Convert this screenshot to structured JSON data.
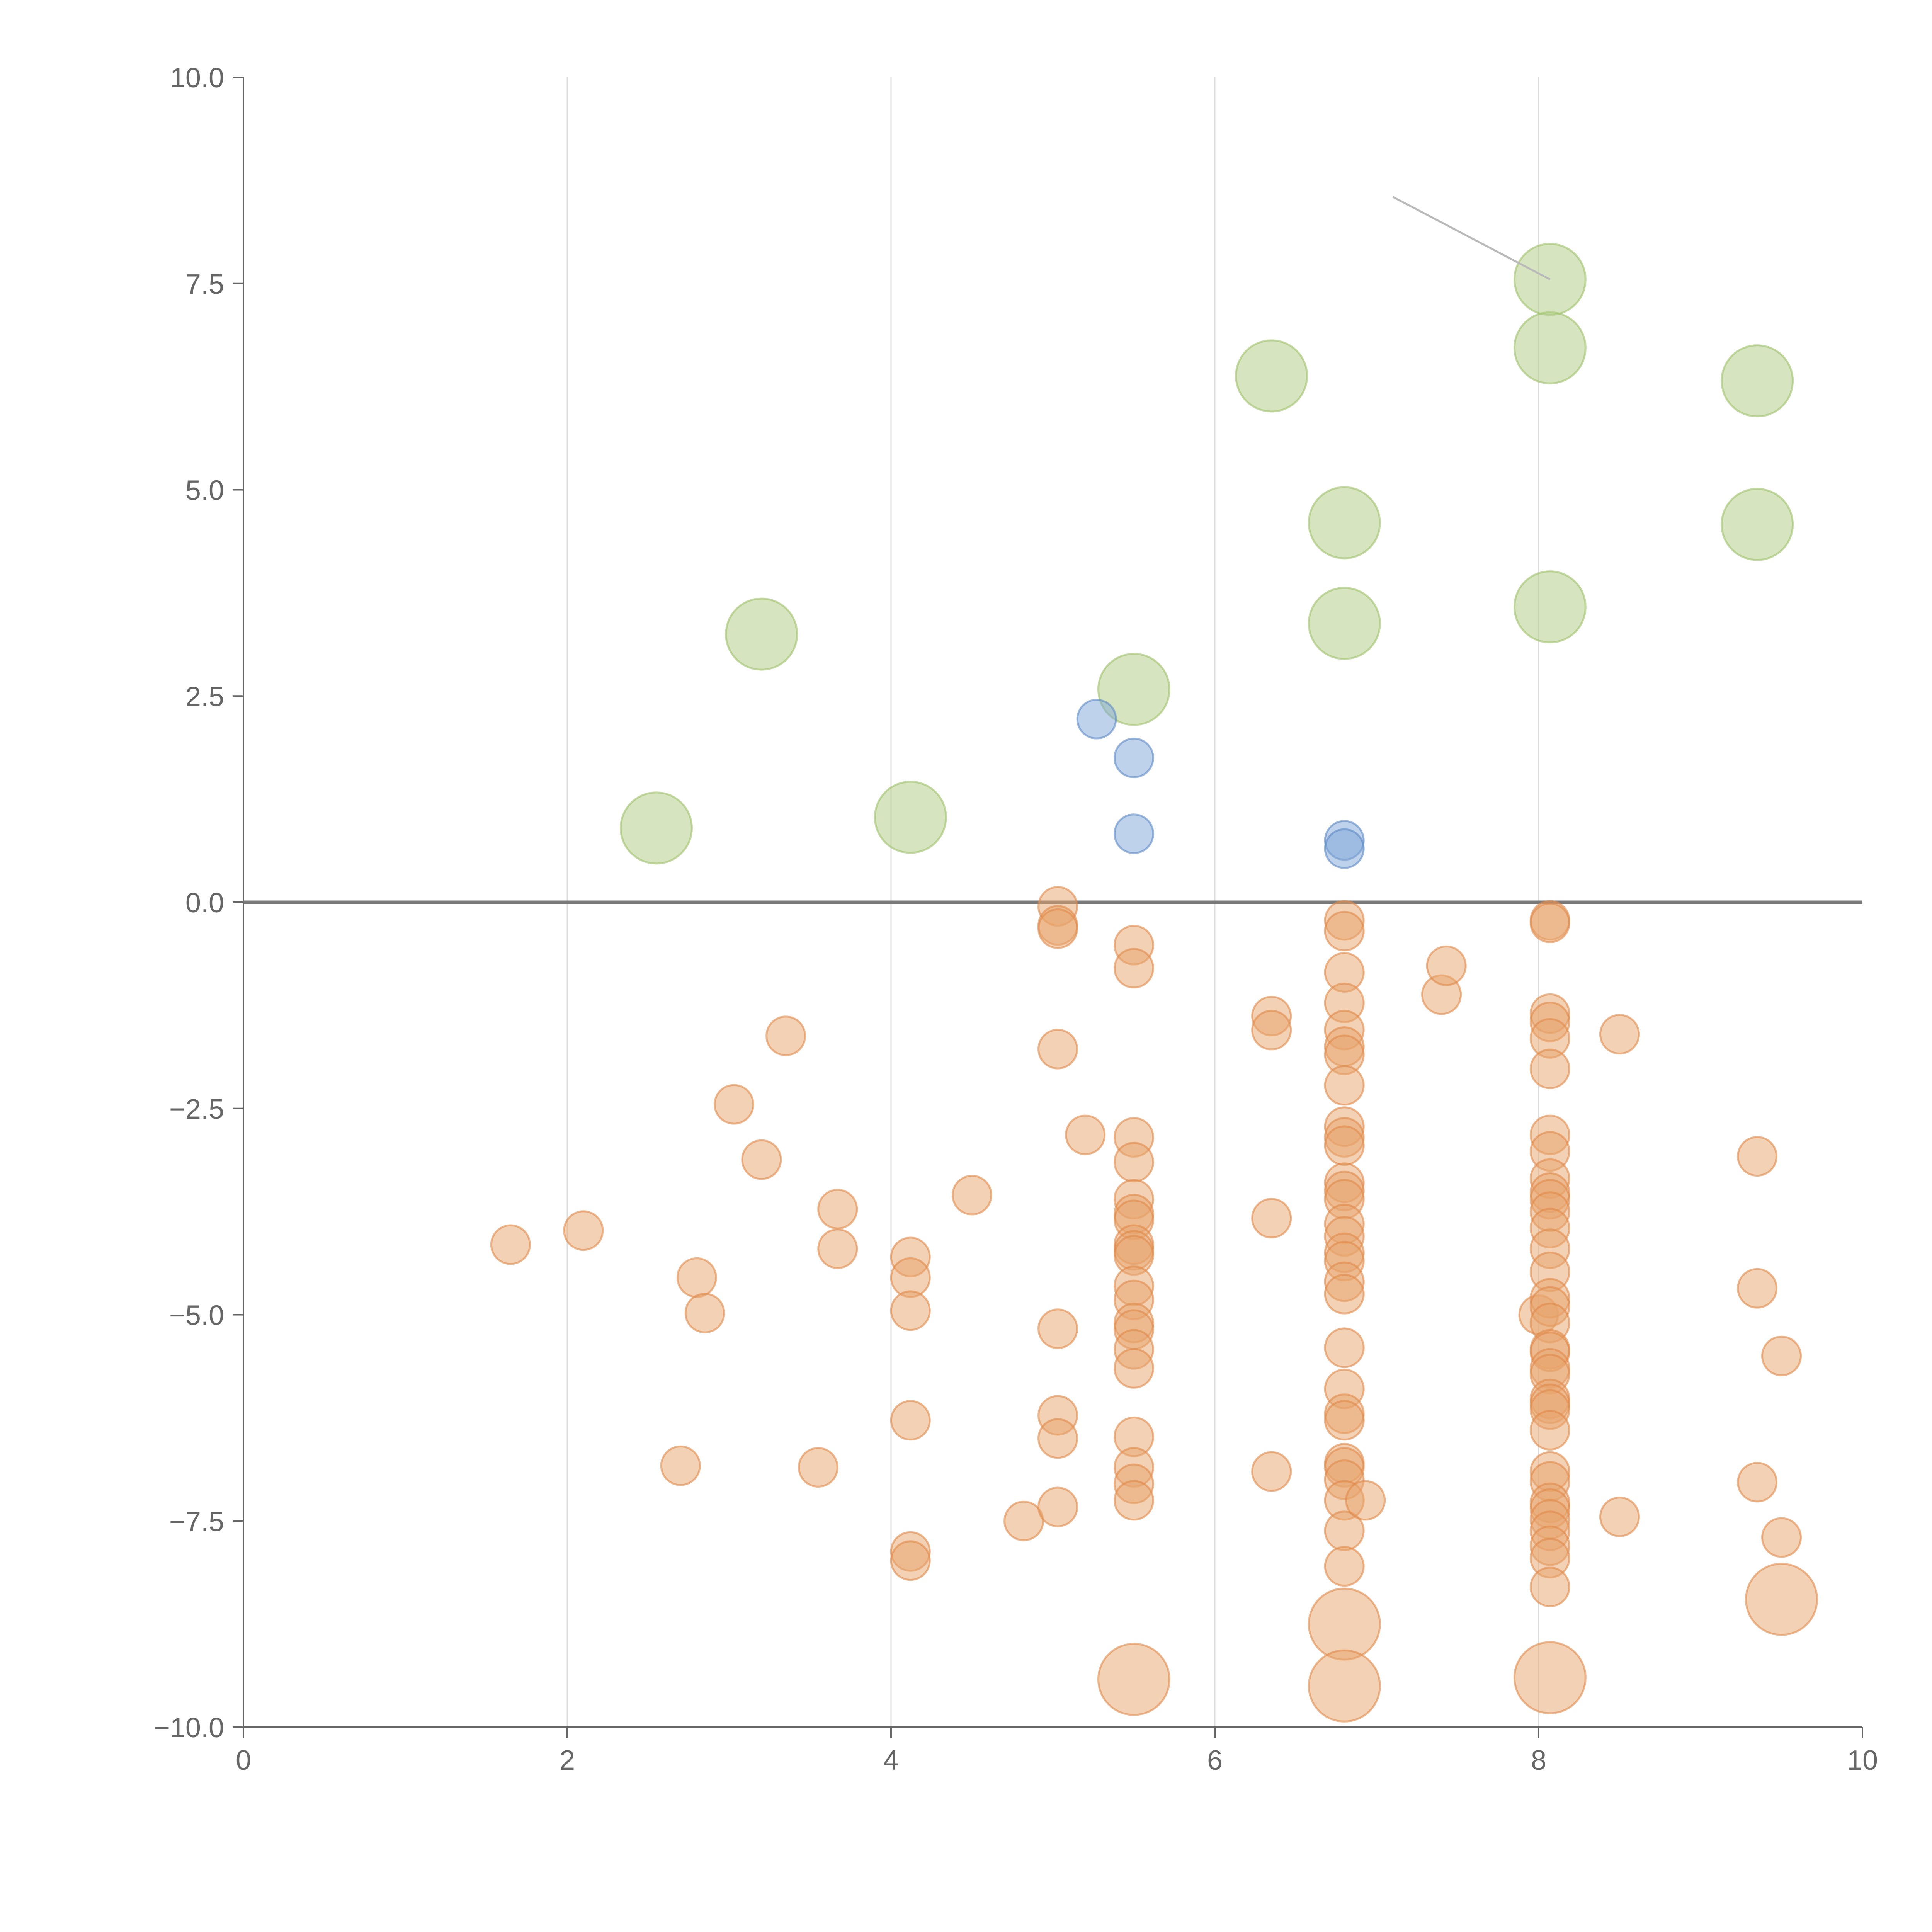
{
  "chart_data": {
    "type": "scatter",
    "title": "",
    "xlabel": "",
    "ylabel": "",
    "xlim": [
      0,
      10
    ],
    "ylim": [
      -10,
      10
    ],
    "x_ticks": [
      "0",
      "2",
      "4",
      "6",
      "8",
      "10"
    ],
    "y_ticks": [
      "10.0",
      "7.5",
      "5.0",
      "2.5",
      "0.0",
      "−2.5",
      "−5.0",
      "−7.5",
      "−10.0"
    ],
    "x_tick_values": [
      0,
      2,
      4,
      6,
      8,
      10
    ],
    "y_tick_values": [
      10,
      7.5,
      5,
      2.5,
      0,
      -2.5,
      -5,
      -7.5,
      -10
    ],
    "vertical_grid": true,
    "horizontal_grid": false,
    "zero_line": true,
    "legend": "none",
    "colors": {
      "green": "#b5d08a",
      "blue": "#7ea6d8",
      "orange": "#e8a36b"
    },
    "series": [
      {
        "color": "green",
        "size": "large",
        "points": [
          [
            2.55,
            0.9
          ],
          [
            3.2,
            3.25
          ],
          [
            4.12,
            1.03
          ],
          [
            5.5,
            2.58
          ],
          [
            6.35,
            6.38
          ],
          [
            6.8,
            4.6
          ],
          [
            6.8,
            3.38
          ],
          [
            8.07,
            7.55
          ],
          [
            8.07,
            6.72
          ],
          [
            8.07,
            3.58
          ],
          [
            9.35,
            6.32
          ],
          [
            9.35,
            4.58
          ]
        ]
      },
      {
        "color": "blue",
        "size": "small",
        "points": [
          [
            5.27,
            2.22
          ],
          [
            5.5,
            1.75
          ],
          [
            5.5,
            0.83
          ],
          [
            6.8,
            0.75
          ],
          [
            6.8,
            0.65
          ]
        ]
      },
      {
        "color": "orange",
        "size": "small",
        "points": [
          [
            1.65,
            -4.15
          ],
          [
            2.1,
            -3.98
          ],
          [
            2.7,
            -6.83
          ],
          [
            2.8,
            -4.55
          ],
          [
            2.85,
            -4.98
          ],
          [
            3.03,
            -2.45
          ],
          [
            3.2,
            -3.12
          ],
          [
            3.35,
            -1.62
          ],
          [
            3.55,
            -6.85
          ],
          [
            3.67,
            -3.72
          ],
          [
            3.67,
            -4.2
          ],
          [
            4.12,
            -4.3
          ],
          [
            4.12,
            -4.55
          ],
          [
            4.12,
            -4.95
          ],
          [
            4.12,
            -6.28
          ],
          [
            4.12,
            -7.87
          ],
          [
            4.12,
            -7.98
          ],
          [
            4.5,
            -3.55
          ],
          [
            4.82,
            -7.5
          ],
          [
            5.03,
            -0.05
          ],
          [
            5.03,
            -0.28
          ],
          [
            5.03,
            -0.32
          ],
          [
            5.03,
            -1.78
          ],
          [
            5.03,
            -5.17
          ],
          [
            5.03,
            -6.22
          ],
          [
            5.03,
            -6.5
          ],
          [
            5.03,
            -7.33
          ],
          [
            5.2,
            -2.82
          ],
          [
            5.5,
            -0.52
          ],
          [
            5.5,
            -0.8
          ],
          [
            5.5,
            -2.85
          ],
          [
            5.5,
            -3.15
          ],
          [
            5.5,
            -3.6
          ],
          [
            5.5,
            -3.78
          ],
          [
            5.5,
            -3.85
          ],
          [
            5.5,
            -4.15
          ],
          [
            5.5,
            -4.22
          ],
          [
            5.5,
            -4.28
          ],
          [
            5.5,
            -4.65
          ],
          [
            5.5,
            -4.82
          ],
          [
            5.5,
            -5.1
          ],
          [
            5.5,
            -5.18
          ],
          [
            5.5,
            -5.42
          ],
          [
            5.5,
            -5.65
          ],
          [
            5.5,
            -6.48
          ],
          [
            5.5,
            -6.85
          ],
          [
            5.5,
            -7.05
          ],
          [
            5.5,
            -7.25
          ],
          [
            6.35,
            -1.38
          ],
          [
            6.35,
            -1.55
          ],
          [
            6.35,
            -3.83
          ],
          [
            6.35,
            -6.9
          ],
          [
            6.8,
            -0.22
          ],
          [
            6.8,
            -0.35
          ],
          [
            6.8,
            -0.85
          ],
          [
            6.8,
            -1.22
          ],
          [
            6.8,
            -1.55
          ],
          [
            6.8,
            -1.75
          ],
          [
            6.8,
            -1.85
          ],
          [
            6.8,
            -2.22
          ],
          [
            6.8,
            -2.72
          ],
          [
            6.8,
            -2.85
          ],
          [
            6.8,
            -2.95
          ],
          [
            6.8,
            -3.4
          ],
          [
            6.8,
            -3.5
          ],
          [
            6.8,
            -3.6
          ],
          [
            6.8,
            -3.9
          ],
          [
            6.8,
            -4.05
          ],
          [
            6.8,
            -4.25
          ],
          [
            6.8,
            -4.35
          ],
          [
            6.8,
            -4.6
          ],
          [
            6.8,
            -4.75
          ],
          [
            6.8,
            -5.4
          ],
          [
            6.8,
            -5.9
          ],
          [
            6.8,
            -6.2
          ],
          [
            6.8,
            -6.28
          ],
          [
            6.8,
            -6.8
          ],
          [
            6.8,
            -6.85
          ],
          [
            6.8,
            -7.0
          ],
          [
            6.8,
            -7.25
          ],
          [
            6.8,
            -7.62
          ],
          [
            6.8,
            -8.05
          ],
          [
            6.93,
            -7.25
          ],
          [
            7.4,
            -1.12
          ],
          [
            7.43,
            -0.77
          ],
          [
            8.0,
            -5.0
          ],
          [
            8.07,
            -0.22
          ],
          [
            8.07,
            -0.25
          ],
          [
            8.07,
            -1.35
          ],
          [
            8.07,
            -1.45
          ],
          [
            8.07,
            -1.65
          ],
          [
            8.07,
            -2.02
          ],
          [
            8.07,
            -2.82
          ],
          [
            8.07,
            -3.02
          ],
          [
            8.07,
            -3.35
          ],
          [
            8.07,
            -3.52
          ],
          [
            8.07,
            -3.6
          ],
          [
            8.07,
            -3.75
          ],
          [
            8.07,
            -3.95
          ],
          [
            8.07,
            -4.2
          ],
          [
            8.07,
            -4.48
          ],
          [
            8.07,
            -4.8
          ],
          [
            8.07,
            -4.9
          ],
          [
            8.07,
            -5.1
          ],
          [
            8.07,
            -5.42
          ],
          [
            8.07,
            -5.45
          ],
          [
            8.07,
            -5.65
          ],
          [
            8.07,
            -5.72
          ],
          [
            8.07,
            -6.02
          ],
          [
            8.07,
            -6.08
          ],
          [
            8.07,
            -6.15
          ],
          [
            8.07,
            -6.4
          ],
          [
            8.07,
            -6.9
          ],
          [
            8.07,
            -7.02
          ],
          [
            8.07,
            -7.28
          ],
          [
            8.07,
            -7.35
          ],
          [
            8.07,
            -7.48
          ],
          [
            8.07,
            -7.62
          ],
          [
            8.07,
            -7.8
          ],
          [
            8.07,
            -7.95
          ],
          [
            8.07,
            -8.3
          ],
          [
            8.5,
            -1.6
          ],
          [
            8.5,
            -7.45
          ],
          [
            9.35,
            -3.08
          ],
          [
            9.35,
            -4.68
          ],
          [
            9.35,
            -7.03
          ],
          [
            9.5,
            -5.5
          ],
          [
            9.5,
            -7.7
          ]
        ]
      },
      {
        "color": "orange",
        "size": "large",
        "points": [
          [
            5.5,
            -9.42
          ],
          [
            6.8,
            -8.75
          ],
          [
            6.8,
            -9.5
          ],
          [
            8.07,
            -9.4
          ],
          [
            9.5,
            -8.45
          ]
        ]
      }
    ],
    "annotations": [
      {
        "type": "leader-line",
        "from": [
          7.1,
          8.55
        ],
        "to": [
          8.07,
          7.55
        ]
      }
    ]
  }
}
